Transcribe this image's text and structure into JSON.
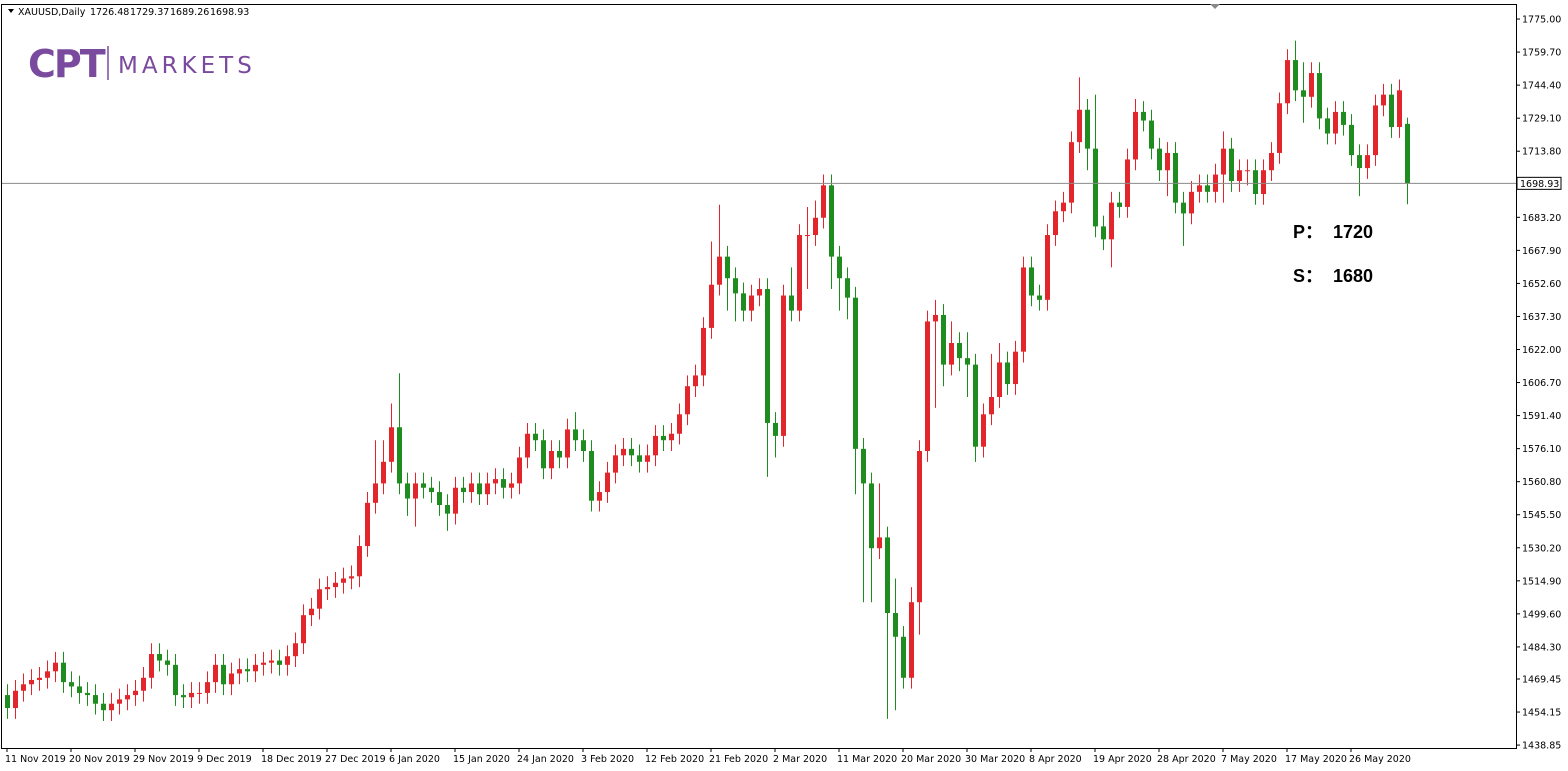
{
  "chart_data": {
    "type": "candlestick",
    "title": "XAUUSD,Daily",
    "header_ohlc": [
      "1726.48",
      "1729.37",
      "1689.26",
      "1698.93"
    ],
    "logo": {
      "brand": "CPT",
      "name": "MARKETS"
    },
    "annotations": [
      {
        "label": "P：",
        "value": 1720
      },
      {
        "label": "S：",
        "value": 1680
      }
    ],
    "up_color": "#e3262b",
    "down_color": "#1e8c1e",
    "price_line": {
      "value": 1698.93,
      "label": "1698.93"
    },
    "ylim": [
      1437.5,
      1781.5
    ],
    "yticks": [
      {
        "value": 1775,
        "label": "1775.00"
      },
      {
        "value": 1759.7,
        "label": "1759.70"
      },
      {
        "value": 1744.4,
        "label": "1744.40"
      },
      {
        "value": 1729.1,
        "label": "1729.10"
      },
      {
        "value": 1713.8,
        "label": "1713.80"
      },
      {
        "value": 1683.2,
        "label": "1683.20"
      },
      {
        "value": 1667.9,
        "label": "1667.90"
      },
      {
        "value": 1652.6,
        "label": "1652.60"
      },
      {
        "value": 1637.3,
        "label": "1637.30"
      },
      {
        "value": 1622,
        "label": "1622.00"
      },
      {
        "value": 1606.7,
        "label": "1606.70"
      },
      {
        "value": 1591.4,
        "label": "1591.40"
      },
      {
        "value": 1576.1,
        "label": "1576.10"
      },
      {
        "value": 1560.8,
        "label": "1560.80"
      },
      {
        "value": 1545.5,
        "label": "1545.50"
      },
      {
        "value": 1530.2,
        "label": "1530.20"
      },
      {
        "value": 1514.9,
        "label": "1514.90"
      },
      {
        "value": 1499.6,
        "label": "1499.60"
      },
      {
        "value": 1484.3,
        "label": "1484.30"
      },
      {
        "value": 1469.45,
        "label": "1469.45"
      },
      {
        "value": 1454.15,
        "label": "1454.15"
      },
      {
        "value": 1438.85,
        "label": "1438.85"
      }
    ],
    "categories": [
      "11 Nov 2019",
      null,
      null,
      null,
      null,
      null,
      null,
      null,
      "20 Nov 2019",
      null,
      null,
      null,
      null,
      null,
      null,
      null,
      "29 Nov 2019",
      null,
      null,
      null,
      null,
      null,
      null,
      null,
      "9 Dec 2019",
      null,
      null,
      null,
      null,
      null,
      null,
      null,
      "18 Dec 2019",
      null,
      null,
      null,
      null,
      null,
      null,
      null,
      "27 Dec 2019",
      null,
      null,
      null,
      null,
      null,
      null,
      null,
      "6 Jan 2020",
      null,
      null,
      null,
      null,
      null,
      null,
      null,
      "15 Jan 2020",
      null,
      null,
      null,
      null,
      null,
      null,
      null,
      "24 Jan 2020",
      null,
      null,
      null,
      null,
      null,
      null,
      null,
      "3 Feb 2020",
      null,
      null,
      null,
      null,
      null,
      null,
      null,
      "12 Feb 2020",
      null,
      null,
      null,
      null,
      null,
      null,
      null,
      "21 Feb 2020",
      null,
      null,
      null,
      null,
      null,
      null,
      null,
      "2 Mar 2020",
      null,
      null,
      null,
      null,
      null,
      null,
      null,
      "11 Mar 2020",
      null,
      null,
      null,
      null,
      null,
      null,
      null,
      "20 Mar 2020",
      null,
      null,
      null,
      null,
      null,
      null,
      null,
      "30 Mar 2020",
      null,
      null,
      null,
      null,
      null,
      null,
      null,
      "8 Apr 2020",
      null,
      null,
      null,
      null,
      null,
      null,
      null,
      "19 Apr 2020",
      null,
      null,
      null,
      null,
      null,
      null,
      null,
      "28 Apr 2020",
      null,
      null,
      null,
      null,
      null,
      null,
      null,
      "7 May 2020",
      null,
      null,
      null,
      null,
      null,
      null,
      null,
      "17 May 2020",
      null,
      null,
      null,
      null,
      null,
      null,
      null,
      "26 May 2020",
      null,
      null,
      null,
      null,
      null,
      null,
      null
    ],
    "open": [
      1462,
      1456,
      1464,
      1467,
      1469,
      1470,
      1473,
      1477,
      1468,
      1466,
      1463,
      1462,
      1458,
      1455,
      1458,
      1460,
      1462,
      1464,
      1470,
      1481,
      1478,
      1476,
      1462,
      1461,
      1463,
      1463,
      1468,
      1476,
      1467,
      1472,
      1474,
      1473,
      1476,
      1477,
      1478,
      1476,
      1480,
      1486,
      1499,
      1502,
      1511,
      1512,
      1514,
      1516,
      1517,
      1531,
      1551,
      1560,
      1570,
      1586,
      1560,
      1553,
      1560,
      1558,
      1556,
      1550,
      1546,
      1558,
      1556,
      1560,
      1555,
      1560,
      1562,
      1558,
      1560,
      1572,
      1583,
      1580,
      1567,
      1575,
      1572,
      1585,
      1580,
      1575,
      1552,
      1556,
      1565,
      1573,
      1576,
      1573,
      1570,
      1573,
      1582,
      1580,
      1583,
      1592,
      1605,
      1610,
      1632,
      1652,
      1665,
      1655,
      1648,
      1640,
      1647,
      1650,
      1588,
      1582,
      1647,
      1640,
      1675,
      1675,
      1683,
      1698,
      1665,
      1655,
      1646,
      1576,
      1560,
      1530,
      1535,
      1500,
      1489,
      1470,
      1505,
      1575,
      1635,
      1638,
      1615,
      1625,
      1618,
      1615,
      1577,
      1592,
      1600,
      1616,
      1606,
      1621,
      1660,
      1647,
      1645,
      1675,
      1686,
      1690,
      1718,
      1733,
      1715,
      1679,
      1673,
      1690,
      1688,
      1710,
      1732,
      1728,
      1715,
      1705,
      1713,
      1690,
      1685,
      1695,
      1698,
      1695,
      1703,
      1715,
      1700,
      1705,
      1705,
      1694,
      1705,
      1713,
      1736,
      1756,
      1742,
      1739,
      1750,
      1729,
      1722,
      1732,
      1726,
      1712,
      1706,
      1712,
      1735,
      1740,
      1725,
      1726.48
    ],
    "high": [
      1467,
      1469,
      1472,
      1474,
      1475,
      1478,
      1482,
      1482,
      1473,
      1471,
      1468,
      1467,
      1463,
      1463,
      1465,
      1467,
      1469,
      1475,
      1486,
      1486,
      1483,
      1481,
      1467,
      1468,
      1468,
      1473,
      1481,
      1481,
      1477,
      1479,
      1479,
      1481,
      1482,
      1483,
      1483,
      1485,
      1491,
      1504,
      1507,
      1516,
      1517,
      1519,
      1521,
      1522,
      1536,
      1556,
      1580,
      1580,
      1597,
      1611,
      1565,
      1565,
      1565,
      1563,
      1561,
      1555,
      1563,
      1563,
      1565,
      1565,
      1565,
      1567,
      1567,
      1565,
      1577,
      1588,
      1588,
      1585,
      1580,
      1580,
      1590,
      1593,
      1585,
      1580,
      1561,
      1570,
      1578,
      1581,
      1581,
      1578,
      1578,
      1587,
      1587,
      1588,
      1597,
      1610,
      1615,
      1637,
      1672,
      1689,
      1670,
      1660,
      1653,
      1652,
      1655,
      1655,
      1593,
      1652,
      1660,
      1680,
      1688,
      1691,
      1703,
      1703,
      1670,
      1660,
      1651,
      1581,
      1565,
      1560,
      1540,
      1516,
      1494,
      1512,
      1580,
      1640,
      1645,
      1643,
      1635,
      1630,
      1630,
      1620,
      1597,
      1620,
      1625,
      1621,
      1626,
      1665,
      1665,
      1652,
      1680,
      1691,
      1695,
      1723,
      1748,
      1738,
      1740,
      1684,
      1695,
      1695,
      1715,
      1738,
      1737,
      1733,
      1720,
      1718,
      1718,
      1695,
      1700,
      1703,
      1703,
      1708,
      1723,
      1720,
      1710,
      1710,
      1710,
      1710,
      1718,
      1741,
      1761,
      1765,
      1755,
      1755,
      1755,
      1734,
      1737,
      1737,
      1731,
      1717,
      1717,
      1740,
      1745,
      1745,
      1747,
      1729.37
    ],
    "low": [
      1451,
      1451,
      1459,
      1462,
      1464,
      1465,
      1468,
      1463,
      1461,
      1458,
      1457,
      1453,
      1450,
      1450,
      1453,
      1455,
      1457,
      1459,
      1465,
      1473,
      1471,
      1457,
      1456,
      1456,
      1458,
      1458,
      1463,
      1462,
      1462,
      1467,
      1468,
      1468,
      1471,
      1472,
      1471,
      1471,
      1475,
      1481,
      1494,
      1497,
      1506,
      1507,
      1509,
      1511,
      1512,
      1526,
      1546,
      1555,
      1565,
      1555,
      1545,
      1540,
      1553,
      1551,
      1545,
      1538,
      1541,
      1551,
      1551,
      1550,
      1550,
      1555,
      1553,
      1553,
      1555,
      1567,
      1575,
      1562,
      1562,
      1567,
      1567,
      1575,
      1570,
      1547,
      1547,
      1551,
      1560,
      1568,
      1568,
      1565,
      1565,
      1568,
      1575,
      1575,
      1578,
      1587,
      1600,
      1605,
      1627,
      1647,
      1640,
      1635,
      1635,
      1635,
      1642,
      1563,
      1572,
      1577,
      1635,
      1635,
      1650,
      1670,
      1678,
      1650,
      1640,
      1636,
      1555,
      1505,
      1505,
      1525,
      1451,
      1455,
      1465,
      1465,
      1490,
      1570,
      1595,
      1605,
      1610,
      1612,
      1600,
      1570,
      1572,
      1587,
      1595,
      1601,
      1601,
      1616,
      1642,
      1640,
      1640,
      1670,
      1681,
      1685,
      1713,
      1705,
      1674,
      1668,
      1660,
      1683,
      1683,
      1705,
      1723,
      1710,
      1700,
      1693,
      1685,
      1670,
      1680,
      1690,
      1690,
      1690,
      1690,
      1695,
      1695,
      1698,
      1689,
      1689,
      1700,
      1708,
      1731,
      1737,
      1727,
      1734,
      1724,
      1717,
      1717,
      1721,
      1707,
      1693,
      1701,
      1707,
      1730,
      1720,
      1720,
      1689.26
    ],
    "close": [
      1456,
      1464,
      1467,
      1469,
      1470,
      1473,
      1477,
      1468,
      1466,
      1463,
      1462,
      1458,
      1455,
      1458,
      1460,
      1462,
      1464,
      1470,
      1481,
      1478,
      1476,
      1462,
      1461,
      1463,
      1463,
      1468,
      1476,
      1467,
      1472,
      1474,
      1473,
      1476,
      1477,
      1478,
      1476,
      1480,
      1486,
      1499,
      1502,
      1511,
      1512,
      1514,
      1516,
      1517,
      1531,
      1551,
      1560,
      1570,
      1586,
      1560,
      1553,
      1560,
      1558,
      1556,
      1550,
      1546,
      1558,
      1556,
      1560,
      1555,
      1560,
      1562,
      1558,
      1560,
      1572,
      1583,
      1580,
      1567,
      1575,
      1572,
      1585,
      1580,
      1575,
      1552,
      1556,
      1565,
      1573,
      1576,
      1573,
      1570,
      1573,
      1582,
      1580,
      1583,
      1592,
      1605,
      1610,
      1632,
      1652,
      1665,
      1655,
      1648,
      1640,
      1647,
      1650,
      1588,
      1582,
      1647,
      1640,
      1675,
      1675,
      1683,
      1698,
      1665,
      1655,
      1646,
      1576,
      1560,
      1530,
      1535,
      1500,
      1489,
      1470,
      1505,
      1575,
      1635,
      1638,
      1615,
      1625,
      1618,
      1615,
      1577,
      1592,
      1600,
      1616,
      1606,
      1621,
      1660,
      1647,
      1645,
      1675,
      1686,
      1690,
      1718,
      1733,
      1715,
      1679,
      1673,
      1690,
      1688,
      1710,
      1732,
      1728,
      1715,
      1705,
      1713,
      1690,
      1685,
      1695,
      1698,
      1695,
      1703,
      1715,
      1700,
      1705,
      1705,
      1694,
      1705,
      1713,
      1736,
      1756,
      1742,
      1739,
      1750,
      1729,
      1722,
      1732,
      1726,
      1712,
      1706,
      1712,
      1735,
      1740,
      1725,
      1742,
      1698.93
    ]
  }
}
